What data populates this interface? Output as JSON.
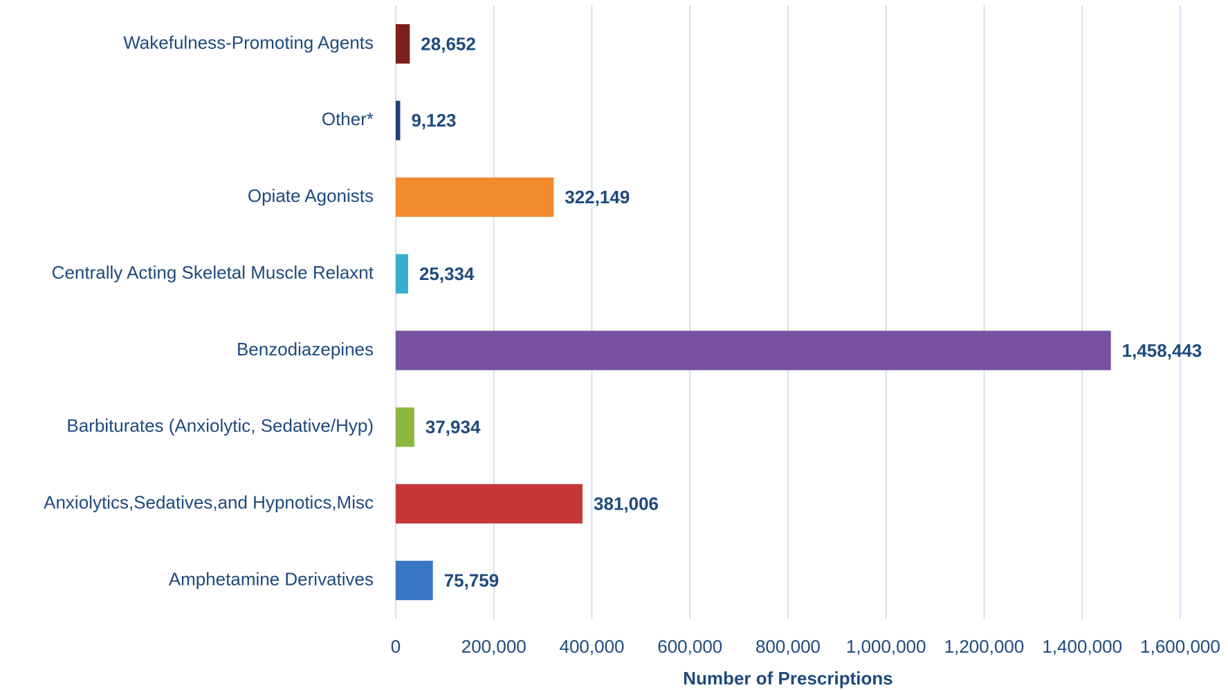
{
  "chart_data": {
    "type": "bar",
    "orientation": "horizontal",
    "x_axis_label": "Number of Prescriptions",
    "categories": [
      "Wakefulness-Promoting Agents",
      "Other*",
      "Opiate Agonists",
      "Centrally Acting Skeletal Muscle Relaxnt",
      "Benzodiazepines",
      "Barbiturates (Anxiolytic, Sedative/Hyp)",
      "Anxiolytics,Sedatives,and Hypnotics,Misc",
      "Amphetamine Derivatives"
    ],
    "values": [
      28652,
      9123,
      322149,
      25334,
      1458443,
      37934,
      381006,
      75759
    ],
    "value_labels": [
      "28,652",
      "9,123",
      "322,149",
      "25,334",
      "1,458,443",
      "37,934",
      "381,006",
      "75,759"
    ],
    "colors": [
      "#7e1f1f",
      "#1f3f7a",
      "#f28a2e",
      "#38aed0",
      "#7652a0",
      "#8db83e",
      "#c63838",
      "#3a76c6"
    ],
    "xlim": [
      0,
      1600000
    ],
    "xticks": [
      0,
      {
        "value": 200000,
        "label": "200,000"
      },
      {
        "value": 400000,
        "label": "400,000"
      },
      {
        "value": 600000,
        "label": "600,000"
      },
      {
        "value": 800000,
        "label": "800,000"
      },
      {
        "value": 1000000,
        "label": "1,000,000"
      },
      {
        "value": 1200000,
        "label": "1,200,000"
      },
      {
        "value": 1400000,
        "label": "1,400,000"
      },
      {
        "value": 1600000,
        "label": "1,600,000"
      }
    ],
    "grid": true
  }
}
